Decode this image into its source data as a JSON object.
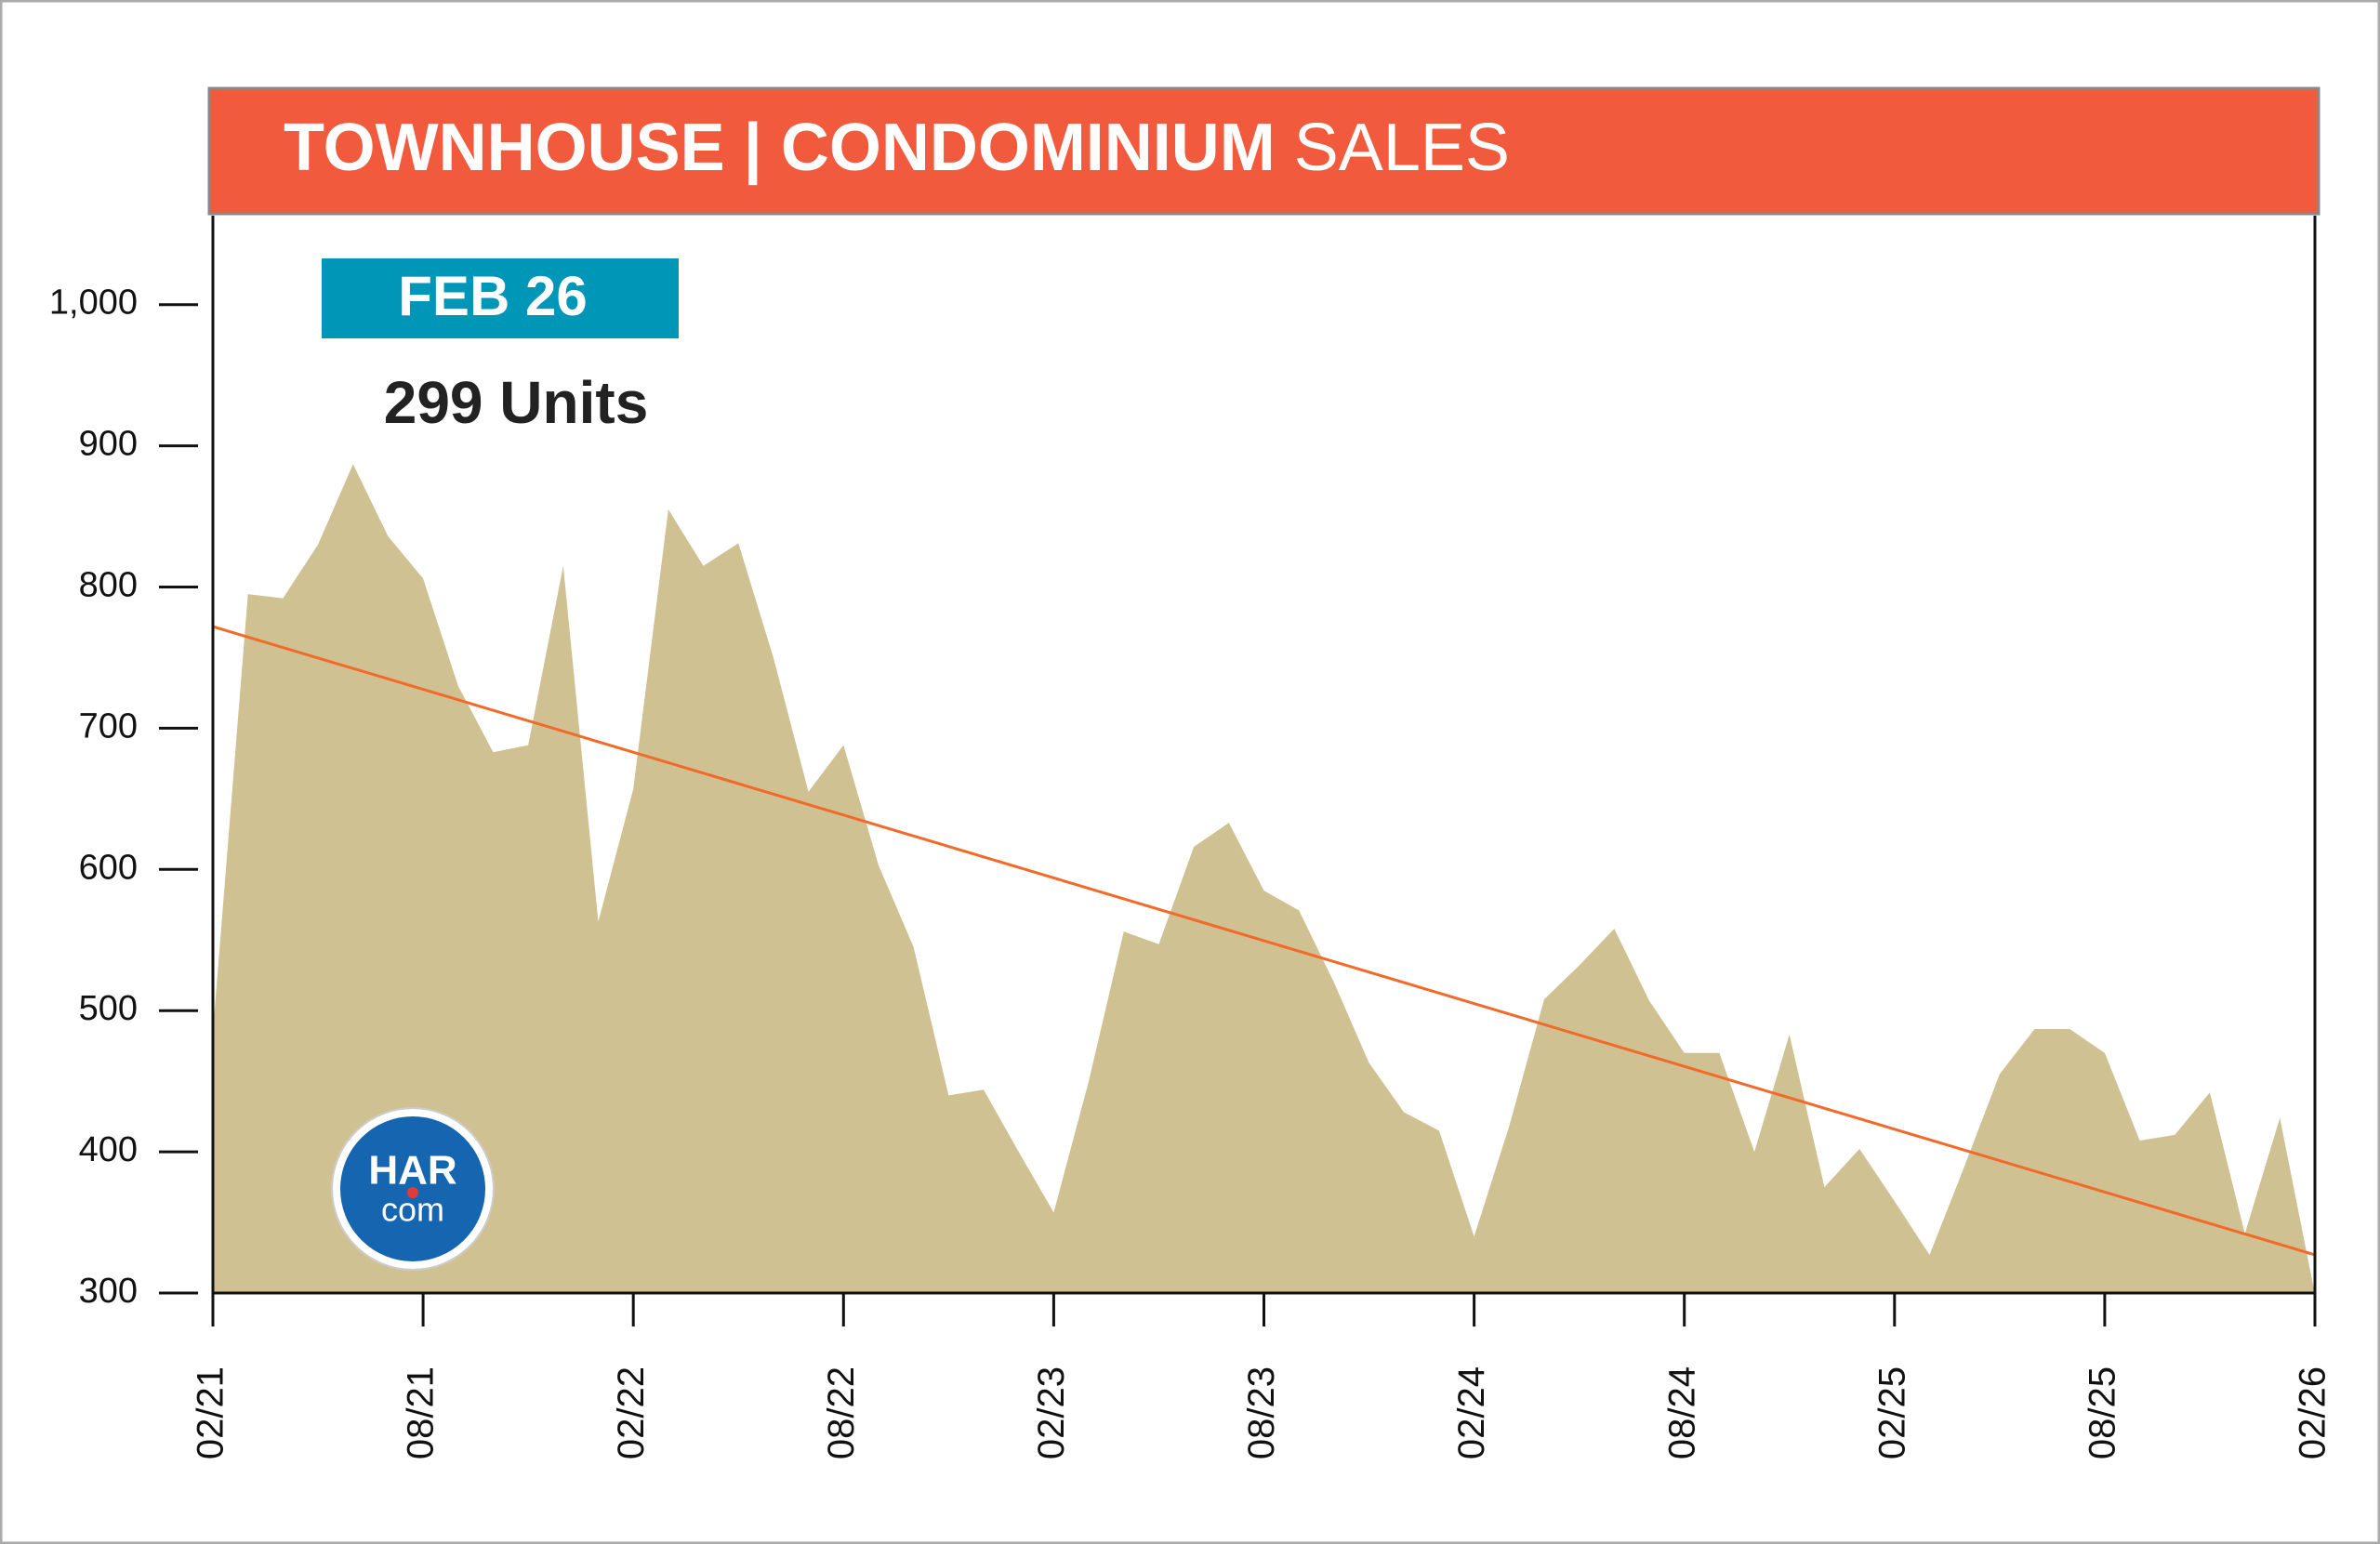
{
  "chart_data": {
    "type": "area",
    "title": "TOWNHOUSE | CONDOMINIUM",
    "title_suffix": "SALES",
    "annotation": {
      "label": "FEB 26",
      "text": "299 Units"
    },
    "logo": {
      "top": "HAR",
      "bottom": "com"
    },
    "categories": [
      "02/21",
      null,
      null,
      null,
      null,
      null,
      "08/21",
      null,
      null,
      null,
      null,
      null,
      "02/22",
      null,
      null,
      null,
      null,
      null,
      "08/22",
      null,
      null,
      null,
      null,
      null,
      "02/23",
      null,
      null,
      null,
      null,
      null,
      "08/23",
      null,
      null,
      null,
      null,
      null,
      "02/24",
      null,
      null,
      null,
      null,
      null,
      "08/24",
      null,
      null,
      null,
      null,
      null,
      "02/25",
      null,
      null,
      null,
      null,
      null,
      "08/25",
      null,
      null,
      null,
      null,
      null,
      "02/26"
    ],
    "series": [
      {
        "name": "Sales",
        "color": "#cfc192",
        "values": [
          485,
          795,
          792,
          830,
          887,
          836,
          806,
          730,
          683,
          688,
          815,
          563,
          657,
          855,
          815,
          831,
          750,
          655,
          688,
          603,
          545,
          440,
          444,
          400,
          357,
          450,
          556,
          547,
          616,
          633,
          585,
          571,
          520,
          463,
          428,
          415,
          340,
          418,
          508,
          532,
          558,
          507,
          470,
          470,
          400,
          483,
          375,
          402,
          365,
          327,
          390,
          455,
          487,
          487,
          470,
          408,
          412,
          442,
          342,
          424,
          299
        ]
      }
    ],
    "trend": {
      "start": 772,
      "end": 327,
      "color": "#f26a2a"
    },
    "ylim": [
      300,
      1063
    ],
    "yticks": [
      300,
      400,
      500,
      600,
      700,
      800,
      900,
      {
        "value": 1000,
        "label": "1,000"
      }
    ],
    "title_color": "#f15a3c",
    "annotation_color": "#0096b7"
  }
}
